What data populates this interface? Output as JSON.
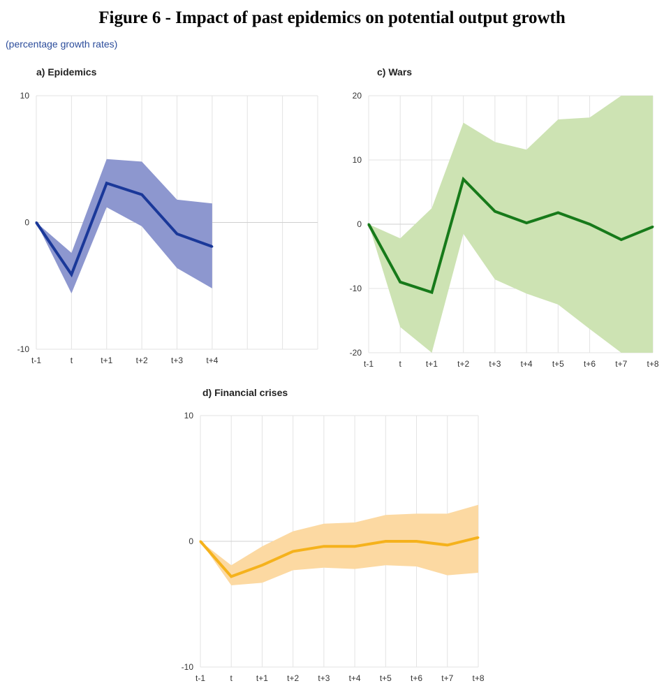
{
  "figure": {
    "title": "Figure 6 - Impact of past epidemics on potential output growth",
    "subtitle": "(percentage growth rates)"
  },
  "colors": {
    "epidemics_line": "#1a3899",
    "epidemics_band": "#8d97cf",
    "wars_line": "#177a1a",
    "wars_band": "#cde3b3",
    "crises_line": "#f5b21c",
    "crises_band": "#fcd9a2"
  },
  "chart_data": [
    {
      "id": "epidemics",
      "type": "line",
      "title": "a) Epidemics",
      "x": [
        "t-1",
        "t",
        "t+1",
        "t+2",
        "t+3",
        "t+4"
      ],
      "x_axis_categories": [
        "t-1",
        "t",
        "t+1",
        "t+2",
        "t+3",
        "t+4",
        "",
        "",
        ""
      ],
      "series": [
        {
          "values": [
            0,
            -4.1,
            3.1,
            2.2,
            -0.9,
            -1.9
          ]
        }
      ],
      "band": {
        "upper": [
          0,
          -2.4,
          5.0,
          4.8,
          1.8,
          1.5
        ],
        "lower": [
          0,
          -5.6,
          1.2,
          -0.3,
          -3.6,
          -5.2
        ]
      },
      "ylim": [
        -10,
        10
      ],
      "yticks": [
        -10,
        0,
        10
      ],
      "grid": true
    },
    {
      "id": "wars",
      "type": "line",
      "title": "c) Wars",
      "x": [
        "t-1",
        "t",
        "t+1",
        "t+2",
        "t+3",
        "t+4",
        "t+5",
        "t+6",
        "t+7",
        "t+8"
      ],
      "series": [
        {
          "values": [
            0,
            -9.0,
            -10.6,
            7.0,
            2.0,
            0.2,
            1.8,
            0.0,
            -2.4,
            -0.4
          ]
        }
      ],
      "band": {
        "upper": [
          0,
          -2.2,
          2.5,
          15.8,
          12.8,
          11.6,
          16.3,
          16.6,
          20,
          20
        ],
        "lower": [
          0,
          -16,
          -20,
          -1.5,
          -8.6,
          -10.8,
          -12.5,
          -16.3,
          -20,
          -20
        ]
      },
      "ylim": [
        -20,
        20
      ],
      "yticks": [
        -20,
        -10,
        0,
        10,
        20
      ],
      "grid": true
    },
    {
      "id": "crises",
      "type": "line",
      "title": "d) Financial crises",
      "x": [
        "t-1",
        "t",
        "t+1",
        "t+2",
        "t+3",
        "t+4",
        "t+5",
        "t+6",
        "t+7",
        "t+8"
      ],
      "series": [
        {
          "values": [
            0,
            -2.8,
            -1.9,
            -0.8,
            -0.4,
            -0.4,
            0.0,
            0.0,
            -0.3,
            0.3
          ]
        }
      ],
      "band": {
        "upper": [
          0,
          -1.9,
          -0.4,
          0.8,
          1.4,
          1.5,
          2.1,
          2.2,
          2.2,
          2.9
        ],
        "lower": [
          0,
          -3.5,
          -3.3,
          -2.3,
          -2.1,
          -2.2,
          -1.9,
          -2.0,
          -2.7,
          -2.5
        ]
      },
      "ylim": [
        -10,
        10
      ],
      "yticks": [
        -10,
        0,
        10
      ],
      "grid": true
    }
  ]
}
